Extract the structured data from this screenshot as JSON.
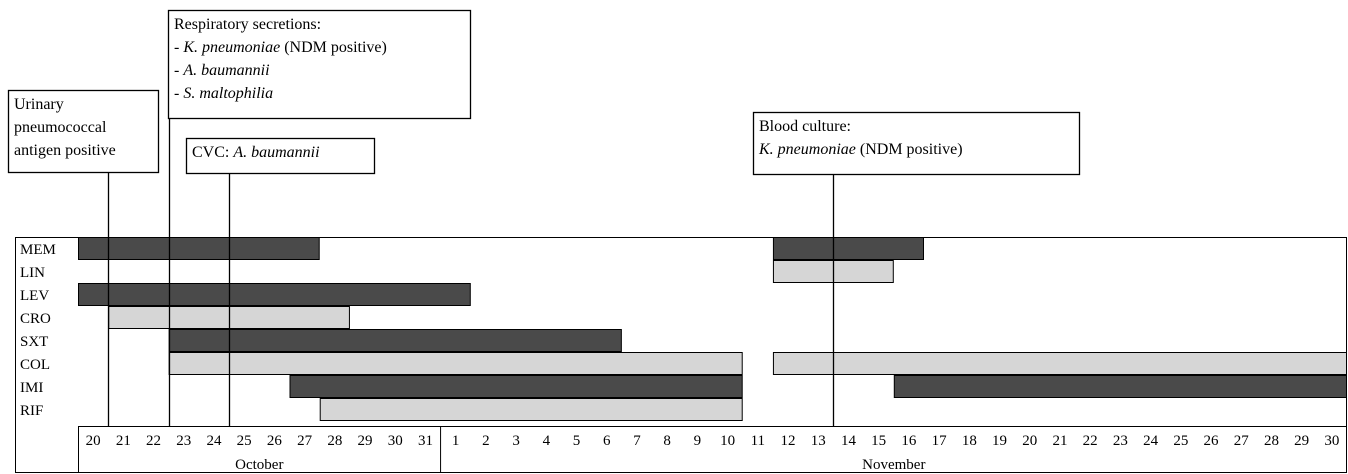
{
  "chart_data": {
    "type": "gantt",
    "colors": {
      "dark": "#4a4a4a",
      "light": "#d6d6d6",
      "line": "#000000"
    },
    "days": [
      {
        "label": "20",
        "month": "oct"
      },
      {
        "label": "21",
        "month": "oct"
      },
      {
        "label": "22",
        "month": "oct"
      },
      {
        "label": "23",
        "month": "oct"
      },
      {
        "label": "24",
        "month": "oct"
      },
      {
        "label": "25",
        "month": "oct"
      },
      {
        "label": "26",
        "month": "oct"
      },
      {
        "label": "27",
        "month": "oct"
      },
      {
        "label": "28",
        "month": "oct"
      },
      {
        "label": "29",
        "month": "oct"
      },
      {
        "label": "30",
        "month": "oct"
      },
      {
        "label": "31",
        "month": "oct"
      },
      {
        "label": "1",
        "month": "nov"
      },
      {
        "label": "2",
        "month": "nov"
      },
      {
        "label": "3",
        "month": "nov"
      },
      {
        "label": "4",
        "month": "nov"
      },
      {
        "label": "5",
        "month": "nov"
      },
      {
        "label": "6",
        "month": "nov"
      },
      {
        "label": "7",
        "month": "nov"
      },
      {
        "label": "8",
        "month": "nov"
      },
      {
        "label": "9",
        "month": "nov"
      },
      {
        "label": "10",
        "month": "nov"
      },
      {
        "label": "11",
        "month": "nov"
      },
      {
        "label": "12",
        "month": "nov"
      },
      {
        "label": "13",
        "month": "nov"
      },
      {
        "label": "14",
        "month": "nov"
      },
      {
        "label": "15",
        "month": "nov"
      },
      {
        "label": "16",
        "month": "nov"
      },
      {
        "label": "17",
        "month": "nov"
      },
      {
        "label": "18",
        "month": "nov"
      },
      {
        "label": "19",
        "month": "nov"
      },
      {
        "label": "20",
        "month": "nov"
      },
      {
        "label": "21",
        "month": "nov"
      },
      {
        "label": "22",
        "month": "nov"
      },
      {
        "label": "23",
        "month": "nov"
      },
      {
        "label": "24",
        "month": "nov"
      },
      {
        "label": "25",
        "month": "nov"
      },
      {
        "label": "26",
        "month": "nov"
      },
      {
        "label": "27",
        "month": "nov"
      },
      {
        "label": "28",
        "month": "nov"
      },
      {
        "label": "29",
        "month": "nov"
      },
      {
        "label": "30",
        "month": "nov"
      }
    ],
    "months": [
      {
        "label": "October",
        "from_day": 0,
        "to_day": 12
      },
      {
        "label": "November",
        "from_day": 12,
        "to_day": 42
      }
    ],
    "gap_day_index": 22,
    "drugs": [
      {
        "name": "MEM",
        "bars": [
          {
            "start": 0,
            "end": 8,
            "shade": "dark"
          },
          {
            "start": 23,
            "end": 28,
            "shade": "dark"
          }
        ]
      },
      {
        "name": "LIN",
        "bars": [
          {
            "start": 23,
            "end": 27,
            "shade": "light"
          }
        ]
      },
      {
        "name": "LEV",
        "bars": [
          {
            "start": 0,
            "end": 13,
            "shade": "dark"
          }
        ]
      },
      {
        "name": "CRO",
        "bars": [
          {
            "start": 1,
            "end": 9,
            "shade": "light"
          }
        ]
      },
      {
        "name": "SXT",
        "bars": [
          {
            "start": 3,
            "end": 18,
            "shade": "dark"
          }
        ]
      },
      {
        "name": "COL",
        "bars": [
          {
            "start": 3,
            "end": 22,
            "shade": "light"
          },
          {
            "start": 23,
            "end": 42,
            "shade": "light"
          }
        ]
      },
      {
        "name": "IMI",
        "bars": [
          {
            "start": 7,
            "end": 22,
            "shade": "dark"
          },
          {
            "start": 27,
            "end": 42,
            "shade": "dark"
          }
        ]
      },
      {
        "name": "RIF",
        "bars": [
          {
            "start": 8,
            "end": 22,
            "shade": "light"
          }
        ]
      }
    ],
    "events": [
      {
        "day_index": 1,
        "lines": [
          [
            {
              "text": "Urinary",
              "italic": false
            }
          ],
          [
            {
              "text": "pneumococcal",
              "italic": false
            }
          ],
          [
            {
              "text": "antigen positive",
              "italic": false
            }
          ]
        ]
      },
      {
        "day_index": 3,
        "lines": [
          [
            {
              "text": "Respiratory secretions:",
              "italic": false
            }
          ],
          [
            {
              "text": "- ",
              "italic": false
            },
            {
              "text": "K. pneumoniae",
              "italic": true
            },
            {
              "text": " (NDM positive)",
              "italic": false
            }
          ],
          [
            {
              "text": "- ",
              "italic": false
            },
            {
              "text": "A. baumannii",
              "italic": true
            }
          ],
          [
            {
              "text": "- ",
              "italic": false
            },
            {
              "text": "S. maltophilia",
              "italic": true
            }
          ]
        ]
      },
      {
        "day_index": 5,
        "lines": [
          [
            {
              "text": "CVC:  ",
              "italic": false
            },
            {
              "text": "A. baumannii",
              "italic": true
            }
          ]
        ]
      },
      {
        "day_index": 25,
        "lines": [
          [
            {
              "text": "Blood culture:",
              "italic": false
            }
          ],
          [
            {
              "text": "K. pneumoniae",
              "italic": true
            },
            {
              "text": " (NDM positive)",
              "italic": false
            }
          ]
        ]
      }
    ]
  }
}
